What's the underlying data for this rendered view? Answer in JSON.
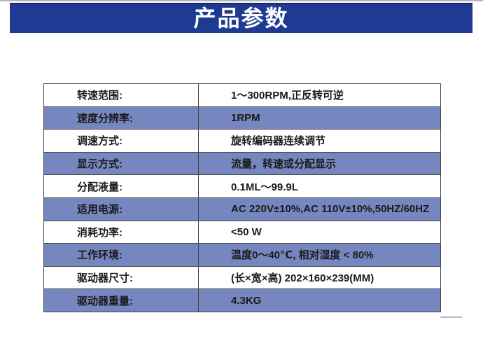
{
  "page": {
    "banner_title": "产品参数"
  },
  "table": {
    "rows": [
      {
        "label": "转速范围:",
        "value": "1～300RPM,正反转可逆"
      },
      {
        "label": "速度分辨率:",
        "value": "1RPM"
      },
      {
        "label": "调速方式:",
        "value": "旋转编码器连续调节"
      },
      {
        "label": "显示方式:",
        "value": "流量，转速或分配显示"
      },
      {
        "label": "分配液量:",
        "value": "0.1ML～99.9L"
      },
      {
        "label": "适用电源:",
        "value": "AC 220V±10%,AC 110V±10%,50HZ/60HZ"
      },
      {
        "label": "消耗功率:",
        "value": "<50 W"
      },
      {
        "label": "工作环境:",
        "value": "温度0～40℃, 相对湿度 < 80%"
      },
      {
        "label": "驱动器尺寸:",
        "value": "(长×宽×高) 202×160×239(MM)"
      },
      {
        "label": "驱动器重量:",
        "value": "4.3KG"
      }
    ]
  },
  "colors": {
    "banner_bg": "#1e3a93",
    "row_alt_bg": "#7687c0",
    "border": "#474747",
    "text": "#1a1a1a",
    "banner_text": "#ffffff"
  }
}
